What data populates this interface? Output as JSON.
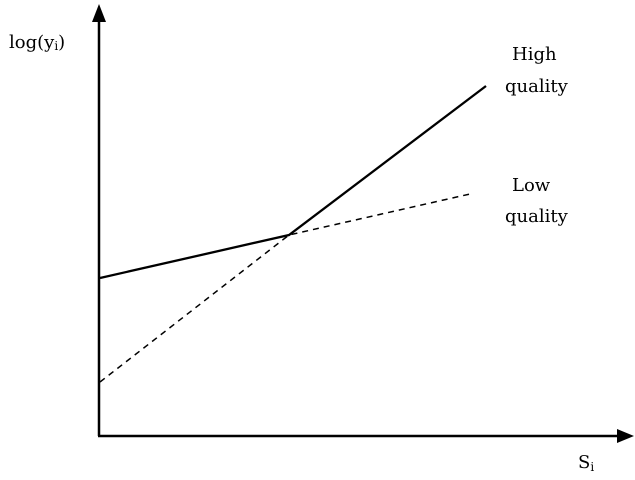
{
  "diagram": {
    "y_axis_label": "log(y",
    "y_axis_subscript": "i",
    "y_axis_close": ")",
    "x_axis_label": "S",
    "x_axis_subscript": "i",
    "high_quality_label_line1": "High",
    "high_quality_label_line2": "quality",
    "low_quality_label_line1": "Low",
    "low_quality_label_line2": "quality"
  },
  "colors": {
    "line": "#000000",
    "background": "#ffffff"
  }
}
